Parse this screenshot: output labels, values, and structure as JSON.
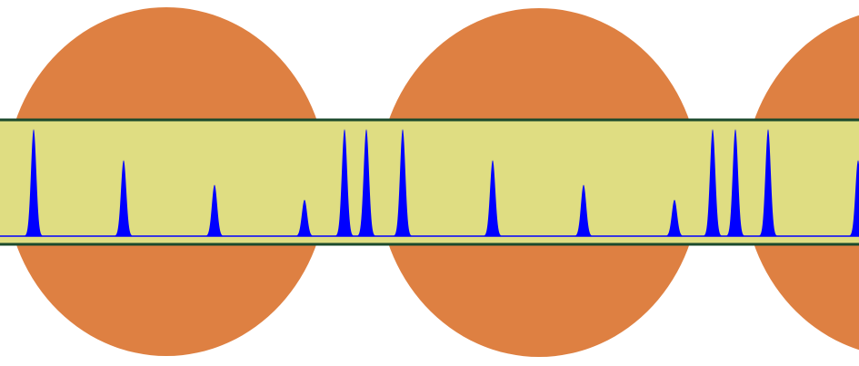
{
  "colors": {
    "background": "#ffffff",
    "blob": "#de8042",
    "band": "#dfdd82",
    "band_border": "#1b4a2c",
    "peak": "#0000ff"
  },
  "blobs": [
    {
      "name": "blob-left"
    },
    {
      "name": "blob-middle"
    },
    {
      "name": "blob-right"
    }
  ],
  "peaks": [
    {
      "name": "peak-1",
      "relative_height": 1.0
    },
    {
      "name": "peak-2",
      "relative_height": 0.71
    },
    {
      "name": "peak-3",
      "relative_height": 0.48
    },
    {
      "name": "peak-4",
      "relative_height": 0.34
    },
    {
      "name": "peak-5",
      "relative_height": 1.0
    },
    {
      "name": "peak-6",
      "relative_height": 1.0
    },
    {
      "name": "peak-7",
      "relative_height": 1.0
    },
    {
      "name": "peak-8",
      "relative_height": 0.71
    },
    {
      "name": "peak-9",
      "relative_height": 0.48
    },
    {
      "name": "peak-10",
      "relative_height": 0.34
    },
    {
      "name": "peak-11",
      "relative_height": 1.0
    },
    {
      "name": "peak-12",
      "relative_height": 1.0
    },
    {
      "name": "peak-13",
      "relative_height": 1.0
    },
    {
      "name": "peak-14",
      "relative_height": 0.71
    }
  ]
}
